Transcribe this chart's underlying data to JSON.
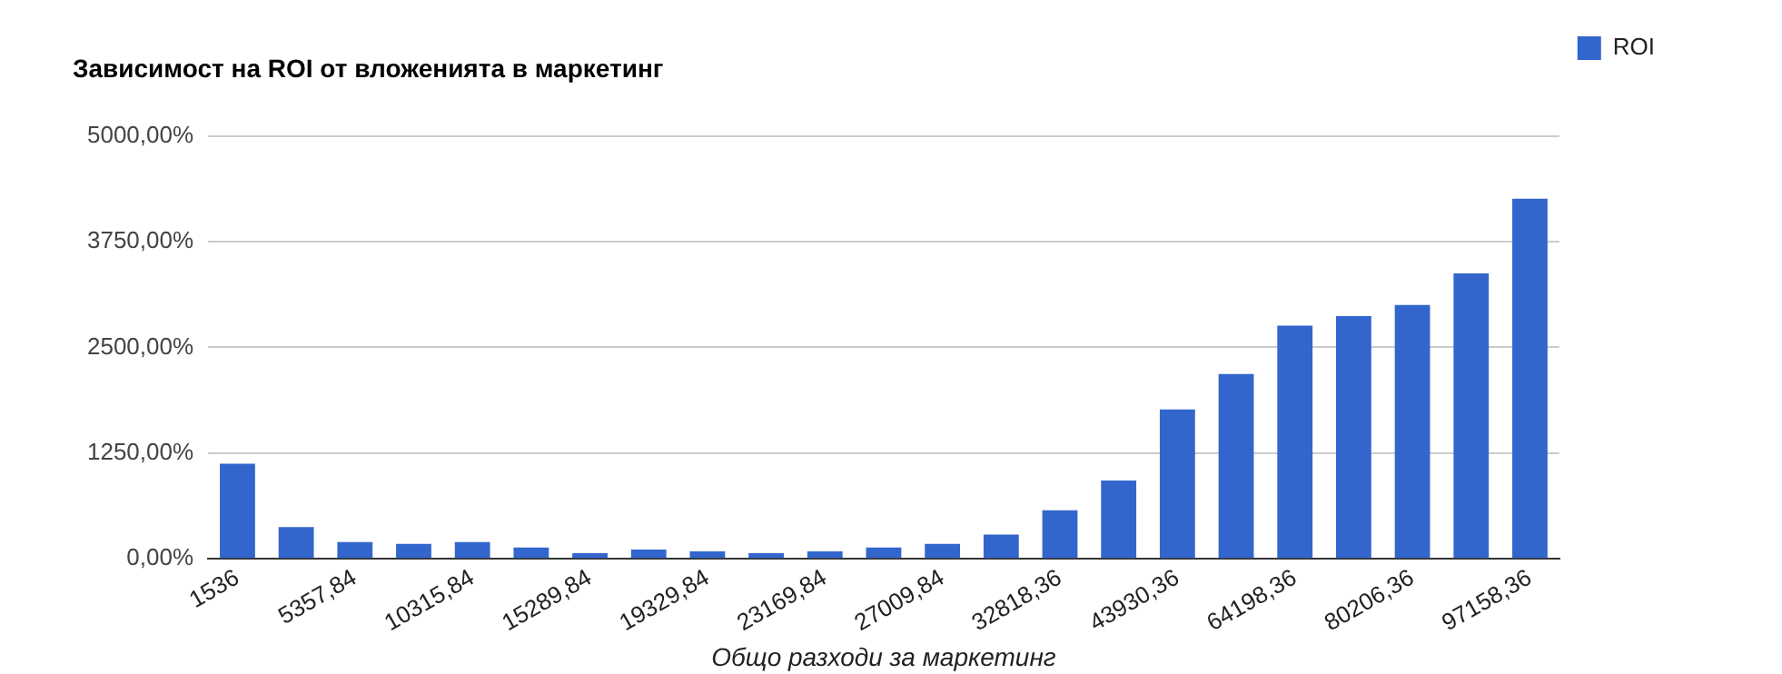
{
  "chart_data": {
    "type": "bar",
    "title": "Зависимост на ROI от вложенията в маркетинг",
    "xlabel": "Общо разходи за маркетинг",
    "categories": [
      "1536",
      null,
      "5357,84",
      null,
      "10315,84",
      null,
      "15289,84",
      null,
      "19329,84",
      null,
      "23169,84",
      null,
      "27009,84",
      null,
      "32818,36",
      null,
      "43930,36",
      null,
      "64198,36",
      null,
      "80206,36",
      null,
      "97158,36"
    ],
    "series": [
      {
        "name": "ROI",
        "color": "#3366cc",
        "values": [
          1125,
          375,
          199,
          176,
          199,
          132,
          66,
          110,
          88,
          66,
          88,
          132,
          176,
          287,
          574,
          926,
          1765,
          2184,
          2757,
          2868,
          3000,
          3375,
          4257
        ]
      }
    ],
    "ylim": [
      0,
      5000
    ],
    "yticks": [
      {
        "value": 0,
        "label": "0,00%"
      },
      {
        "value": 1250,
        "label": "1250,00%"
      },
      {
        "value": 2500,
        "label": "2500,00%"
      },
      {
        "value": 3750,
        "label": "3750,00%"
      },
      {
        "value": 5000,
        "label": "5000,00%"
      }
    ],
    "grid": "y",
    "legend": "right"
  }
}
